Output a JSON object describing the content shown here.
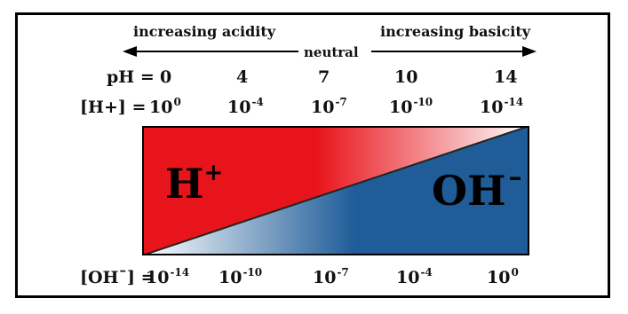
{
  "arrows": {
    "acidity_label": "increasing acidity",
    "basicity_label": "increasing basicity",
    "neutral_label": "neutral"
  },
  "ph_row": {
    "prefix": "pH =",
    "values": [
      "0",
      "4",
      "7",
      "10",
      "14"
    ]
  },
  "h_row": {
    "prefix": "[H+] =",
    "base": "10",
    "exponents": [
      "0",
      "-4",
      "-7",
      "-10",
      "-14"
    ]
  },
  "oh_row": {
    "prefix": "[OH¯] =",
    "base": "10",
    "exponents": [
      "-14",
      "-10",
      "-7",
      "-4",
      "0"
    ]
  },
  "regions": {
    "h_label": "H",
    "h_sup": "+",
    "oh_label": "OH",
    "oh_sup": "–"
  },
  "colors": {
    "acid": "#e8141b",
    "base": "#1f5c98",
    "neutral": "#ffffff"
  }
}
